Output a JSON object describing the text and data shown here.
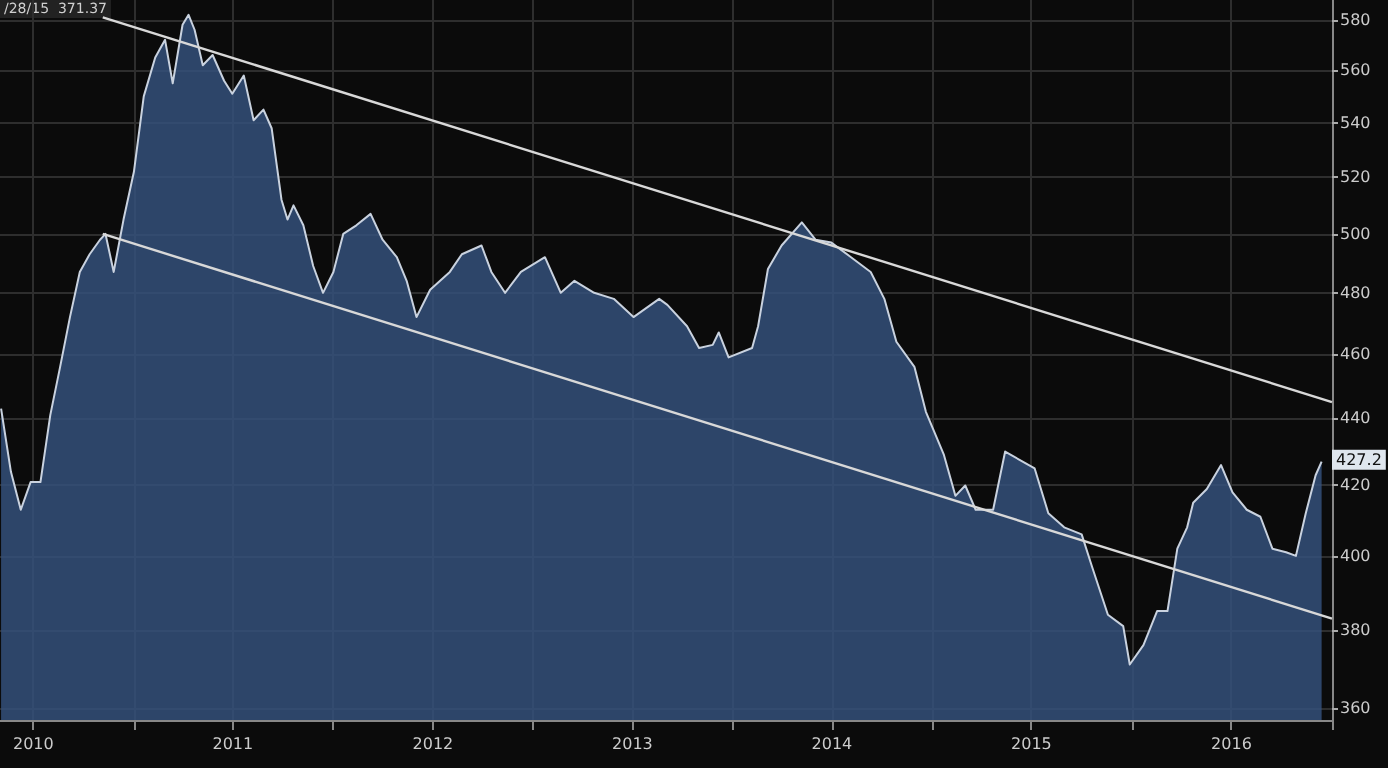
{
  "chart_data": {
    "type": "area",
    "annotations": [
      "/28/15  371.37",
      "427.2"
    ],
    "xlim": [
      "2010-05-01",
      "2017-01-01"
    ],
    "xticks": [
      {
        "value": "2010-07-01",
        "label": "2010"
      },
      {
        "value": "2011-01-01",
        "label": null
      },
      {
        "value": "2011-07-01",
        "label": "2011"
      },
      {
        "value": "2012-01-01",
        "label": null
      },
      {
        "value": "2012-07-01",
        "label": "2012"
      },
      {
        "value": "2013-01-01",
        "label": null
      },
      {
        "value": "2013-07-01",
        "label": "2013"
      },
      {
        "value": "2014-01-01",
        "label": null
      },
      {
        "value": "2014-07-01",
        "label": "2014"
      },
      {
        "value": "2015-01-01",
        "label": null
      },
      {
        "value": "2015-07-01",
        "label": "2015"
      },
      {
        "value": "2016-01-01",
        "label": null
      },
      {
        "value": "2016-07-01",
        "label": "2016"
      },
      {
        "value": "2017-01-01",
        "label": null
      }
    ],
    "ylim": [
      357,
      588
    ],
    "yticks": [
      360,
      380,
      400,
      420,
      440,
      460,
      480,
      500,
      520,
      540,
      560,
      580
    ],
    "log": "y",
    "grid": true,
    "series": [
      {
        "type": "area",
        "color": "#c9d2df",
        "x": [
          "2010-05-03",
          "2010-05-21",
          "2010-06-08",
          "2010-06-26",
          "2010-07-14",
          "2010-08-01",
          "2010-08-19",
          "2010-09-06",
          "2010-09-24",
          "2010-10-12",
          "2010-10-31",
          "2010-11-10",
          "2010-11-25",
          "2010-12-13",
          "2011-01-01",
          "2011-01-19",
          "2011-02-09",
          "2011-02-27",
          "2011-03-13",
          "2011-03-31",
          "2011-04-11",
          "2011-04-22",
          "2011-05-07",
          "2011-05-25",
          "2011-06-15",
          "2011-06-30",
          "2011-07-21",
          "2011-08-08",
          "2011-08-26",
          "2011-09-10",
          "2011-09-28",
          "2011-10-09",
          "2011-10-20",
          "2011-11-07",
          "2011-11-25",
          "2011-12-13",
          "2012-01-01",
          "2012-01-19",
          "2012-02-12",
          "2012-03-09",
          "2012-03-31",
          "2012-04-26",
          "2012-05-14",
          "2012-06-01",
          "2012-06-26",
          "2012-08-01",
          "2012-08-23",
          "2012-09-28",
          "2012-10-16",
          "2012-11-10",
          "2012-12-09",
          "2013-01-22",
          "2013-02-20",
          "2013-03-17",
          "2013-04-22",
          "2013-05-28",
          "2013-07-03",
          "2013-08-19",
          "2013-09-03",
          "2013-10-09",
          "2013-10-31",
          "2013-11-25",
          "2013-12-06",
          "2013-12-24",
          "2014-02-05",
          "2014-02-16",
          "2014-03-06",
          "2014-03-31",
          "2014-05-07",
          "2014-06-01",
          "2014-06-30",
          "2014-08-05",
          "2014-09-10",
          "2014-10-05",
          "2014-10-27",
          "2014-11-29",
          "2014-12-20",
          "2015-01-22",
          "2015-02-12",
          "2015-03-02",
          "2015-03-21",
          "2015-04-22",
          "2015-05-14",
          "2015-06-15",
          "2015-07-07",
          "2015-08-01",
          "2015-08-30",
          "2015-10-01",
          "2015-10-20",
          "2015-11-18",
          "2015-12-16",
          "2015-12-28",
          "2016-01-22",
          "2016-02-16",
          "2016-03-06",
          "2016-03-24",
          "2016-04-11",
          "2016-04-22",
          "2016-05-17",
          "2016-06-12",
          "2016-07-03",
          "2016-07-29",
          "2016-08-23",
          "2016-09-14",
          "2016-10-09",
          "2016-10-27",
          "2016-11-14",
          "2016-12-02",
          "2016-12-13"
        ],
        "values": [
          443,
          424,
          413,
          421,
          421,
          441,
          456,
          472,
          487,
          493,
          498,
          500,
          487,
          505,
          522,
          550,
          565,
          572,
          555,
          578,
          582,
          576,
          562,
          566,
          556,
          551,
          558,
          541,
          545,
          538,
          512,
          505,
          510,
          503,
          489,
          480,
          487,
          500,
          503,
          507,
          498,
          492,
          484,
          472,
          481,
          487,
          493,
          496,
          487,
          480,
          487,
          492,
          480,
          484,
          480,
          478,
          472,
          478,
          476,
          469,
          462,
          463,
          467,
          459,
          462,
          469,
          488,
          496,
          504,
          498,
          497,
          492,
          487,
          478,
          464,
          456,
          442,
          429,
          417,
          420,
          413,
          413,
          430,
          427,
          425,
          412,
          408,
          406,
          397,
          384,
          381,
          371,
          376,
          385,
          385,
          402,
          408,
          415,
          419,
          426,
          418,
          413,
          411,
          402,
          401,
          400,
          412,
          423,
          427
        ]
      },
      {
        "type": "line",
        "color": "#d8d8d8",
        "x": [
          "2010-11-05",
          "2017-01-01"
        ],
        "values": [
          581,
          445
        ]
      },
      {
        "type": "line",
        "color": "#d8d8d8",
        "x": [
          "2010-11-05",
          "2017-01-01"
        ],
        "values": [
          500,
          383
        ]
      }
    ]
  }
}
